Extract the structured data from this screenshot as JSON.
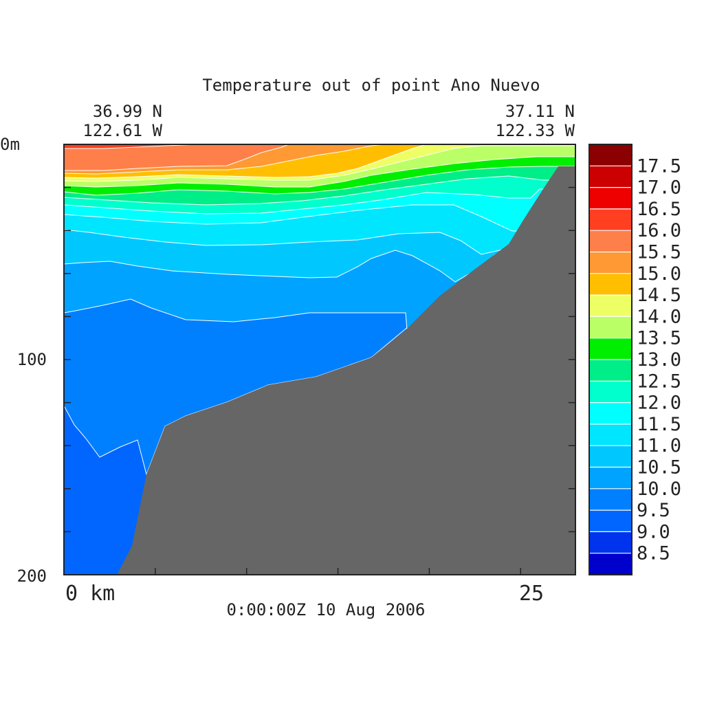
{
  "chart_data": {
    "type": "contour",
    "title": "Temperature out of point Ano Nuevo",
    "start_lat": "36.99 N",
    "start_lon": "122.61 W",
    "end_lat": "37.11 N",
    "end_lon": "122.33 W",
    "x_axis": {
      "labels": [
        "0 km",
        "25"
      ],
      "range_km": [
        0,
        28
      ],
      "tick_km": [
        5,
        10,
        15,
        20,
        25
      ]
    },
    "y_axis": {
      "labels": [
        "0m",
        "100",
        "200"
      ],
      "range_m": [
        0,
        200
      ],
      "tick_m": [
        20,
        40,
        60,
        80,
        100,
        120,
        140,
        160,
        180
      ],
      "direction": "downward"
    },
    "timestamp": "0:00:00Z  10 Aug 2006",
    "colorbar": {
      "labels": [
        "17.5",
        "17.0",
        "16.5",
        "16.0",
        "15.5",
        "15.0",
        "14.5",
        "14.0",
        "13.5",
        "13.0",
        "12.5",
        "12.0",
        "11.5",
        "11.0",
        "10.5",
        "10.0",
        "9.5",
        "9.0",
        "8.5"
      ],
      "colors": [
        "#8b0000",
        "#cc0000",
        "#ee0000",
        "#ff3f1f",
        "#ff7f4a",
        "#ff9933",
        "#ffbf00",
        "#eeff66",
        "#bbff66",
        "#00ee00",
        "#00ee88",
        "#00ffcc",
        "#00ffff",
        "#00e6ff",
        "#00c8ff",
        "#00a3ff",
        "#0080ff",
        "#0066ff",
        "#0033ee",
        "#0000cc"
      ]
    },
    "profile_colors": {
      "bathymetry": "#666666",
      "contour_line": "#ffffff"
    }
  }
}
